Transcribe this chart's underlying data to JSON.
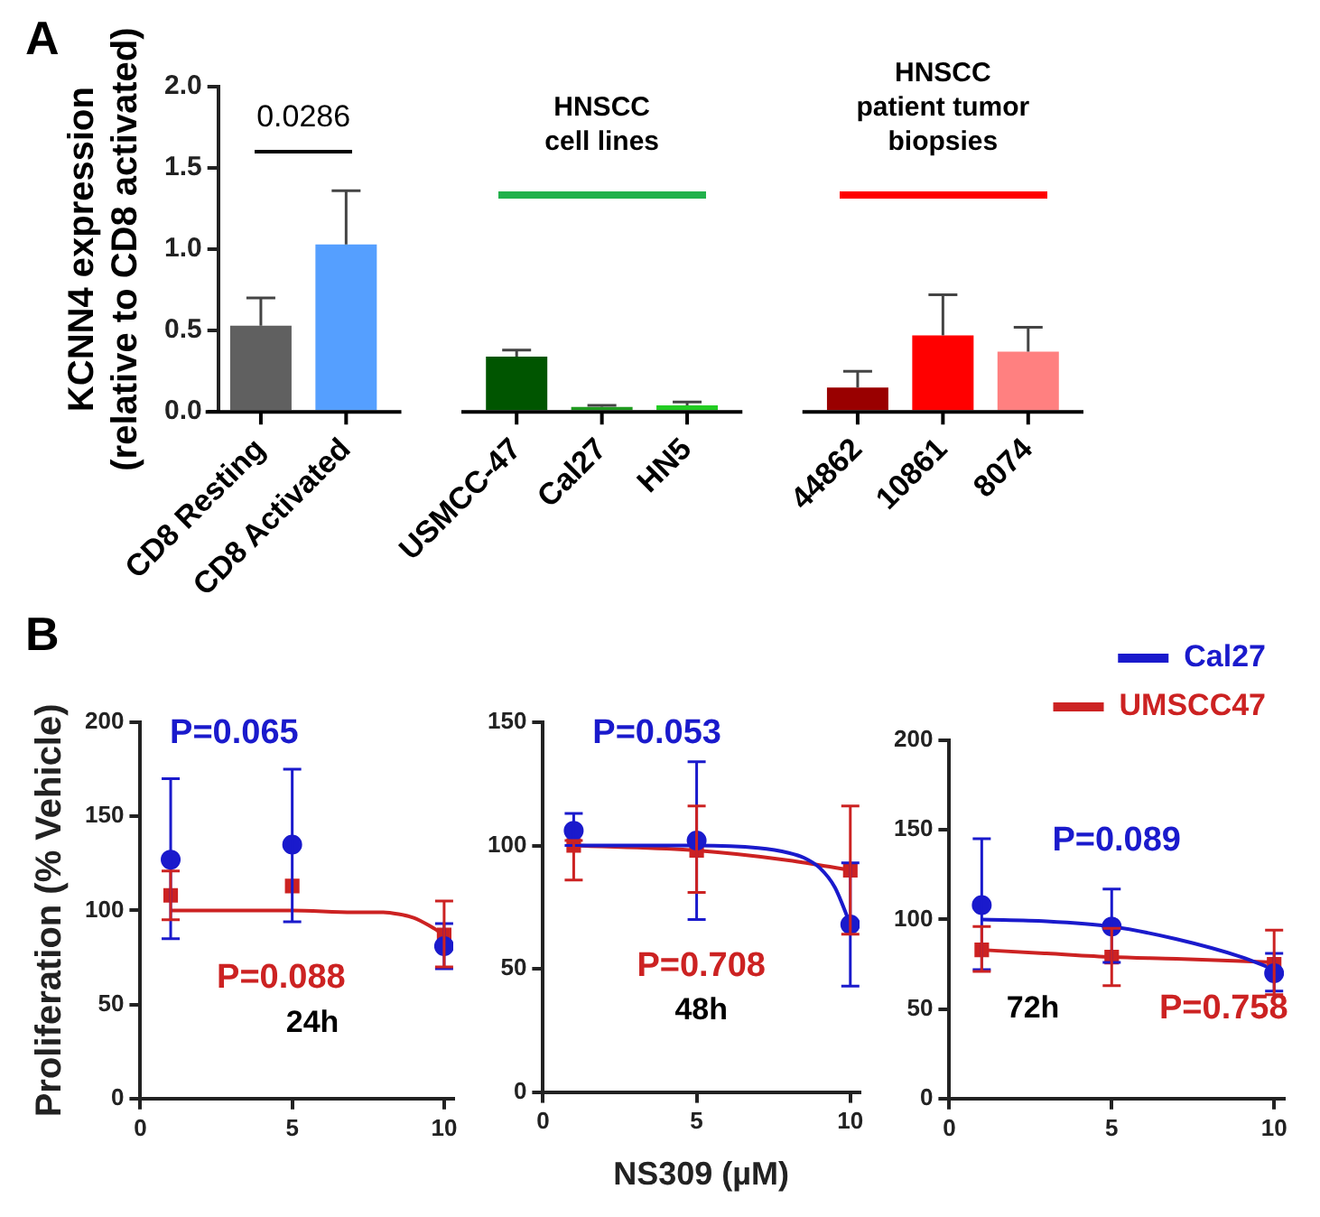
{
  "chart_data": [
    {
      "type": "bar",
      "title": "A",
      "ylabel": "KCNN4 expression\n(relative to CD8 activated)",
      "categories": [
        "CD8 Resting",
        "CD8 Activated",
        null,
        "USMCC-47",
        "Cal27",
        "HN5",
        null,
        "44862",
        "10861",
        "8074"
      ],
      "values": [
        0.53,
        1.03,
        null,
        0.34,
        0.03,
        0.04,
        null,
        0.15,
        0.47,
        0.37
      ],
      "errors": [
        [
          0.53,
          0.7
        ],
        [
          1.03,
          1.36
        ],
        null,
        [
          0.34,
          0.38
        ],
        [
          0.03,
          0.04
        ],
        [
          0.04,
          0.06
        ],
        null,
        [
          0.15,
          0.25
        ],
        [
          0.47,
          0.72
        ],
        [
          0.37,
          0.52
        ]
      ],
      "colors": [
        "#606060",
        "#559fff",
        null,
        "#005500",
        "#1f9a1f",
        "#22cc22",
        null,
        "#990000",
        "#ff0000",
        "#ff8080"
      ],
      "ylim": [
        0,
        2
      ],
      "yticks": [
        {
          "value": 0,
          "label": "0.0"
        },
        {
          "value": 0.5,
          "label": "0.5"
        },
        {
          "value": 1,
          "label": "1.0"
        },
        {
          "value": 1.5,
          "label": "1.5"
        },
        {
          "value": 2,
          "label": "2.0"
        }
      ],
      "annotations": [
        "0.0286",
        "HNSCC\ncell lines",
        "HNSCC\npatient tumor\nbiopsies"
      ]
    },
    {
      "type": "scatter",
      "title": "B",
      "ylabel": "Proliferation (% Vehicle)",
      "xlim": [
        0,
        10.3
      ],
      "xticks": [
        0,
        5,
        10
      ],
      "ylim": [
        0,
        200
      ],
      "yticks": [
        0,
        50,
        100,
        150,
        200
      ],
      "series": [
        {
          "type": "scatter",
          "marker": "circle",
          "color": "#1a1acc",
          "x": [
            1,
            5,
            10
          ],
          "values": [
            127,
            135,
            81
          ],
          "errors": [
            [
              85,
              170
            ],
            [
              94,
              175
            ],
            [
              69,
              93
            ]
          ]
        },
        {
          "type": "scatter",
          "marker": "square",
          "color": "#cc2222",
          "x": [
            1,
            5,
            10
          ],
          "values": [
            108,
            113,
            87
          ],
          "errors": [
            [
              95,
              121
            ],
            null,
            [
              70,
              105
            ]
          ]
        },
        {
          "type": "line",
          "color": "#cc2222",
          "x": [
            1,
            5,
            7,
            8,
            8.5,
            9,
            9.5,
            10
          ],
          "values": [
            100,
            100,
            99,
            99,
            98,
            96,
            92,
            87
          ]
        }
      ],
      "annotations": [
        "P=0.065",
        "P=0.088",
        "24h"
      ]
    },
    {
      "type": "scatter",
      "xlabel": "NS309 (µM)",
      "xlim": [
        0,
        10.3
      ],
      "xticks": [
        0,
        5,
        10
      ],
      "ylim": [
        0,
        150
      ],
      "yticks": [
        0,
        50,
        100,
        150
      ],
      "series": [
        {
          "type": "scatter",
          "marker": "circle",
          "color": "#1a1acc",
          "x": [
            1,
            5,
            10
          ],
          "values": [
            106,
            102,
            68
          ],
          "errors": [
            [
              100,
              113
            ],
            [
              70,
              134
            ],
            [
              43,
              93
            ]
          ]
        },
        {
          "type": "scatter",
          "marker": "square",
          "color": "#cc2222",
          "x": [
            1,
            5,
            10
          ],
          "values": [
            100,
            98,
            90
          ],
          "errors": [
            [
              86,
              102
            ],
            [
              81,
              116
            ],
            [
              64,
              116
            ]
          ]
        },
        {
          "type": "line",
          "color": "#1a1acc",
          "x": [
            1,
            5,
            7,
            8,
            8.5,
            9,
            9.5,
            10
          ],
          "values": [
            100,
            100,
            99,
            97,
            95,
            91,
            83,
            68
          ]
        },
        {
          "type": "line",
          "color": "#cc2222",
          "x": [
            1,
            5,
            8,
            10
          ],
          "values": [
            100,
            98,
            94,
            90
          ]
        }
      ],
      "annotations": [
        "P=0.053",
        "P=0.708",
        "48h"
      ]
    },
    {
      "type": "scatter",
      "xlim": [
        0,
        10.3
      ],
      "xticks": [
        0,
        5,
        10
      ],
      "ylim": [
        0,
        200
      ],
      "yticks": [
        0,
        50,
        100,
        150,
        200
      ],
      "legend": "top right",
      "series": [
        {
          "type": "scatter",
          "marker": "circle",
          "color": "#1a1acc",
          "x": [
            1,
            5,
            10
          ],
          "values": [
            108,
            96,
            70
          ],
          "errors": [
            [
              72,
              145
            ],
            [
              76,
              117
            ],
            [
              60,
              81
            ]
          ]
        },
        {
          "type": "scatter",
          "marker": "square",
          "color": "#cc2222",
          "x": [
            1,
            5,
            10
          ],
          "values": [
            83,
            79,
            75
          ],
          "errors": [
            [
              71,
              96
            ],
            [
              63,
              95
            ],
            [
              58,
              94
            ]
          ]
        },
        {
          "type": "line",
          "name": "Cal27",
          "color": "#1a1acc",
          "x": [
            1,
            3,
            5,
            7,
            9,
            10
          ],
          "values": [
            100,
            99,
            96,
            89,
            79,
            72
          ]
        },
        {
          "type": "line",
          "name": "UMSCC47",
          "color": "#cc2222",
          "x": [
            1,
            3,
            5,
            7,
            10
          ],
          "values": [
            83,
            81,
            79,
            78,
            76
          ]
        }
      ],
      "annotations": [
        "P=0.089",
        "P=0.758",
        "72h"
      ]
    }
  ]
}
